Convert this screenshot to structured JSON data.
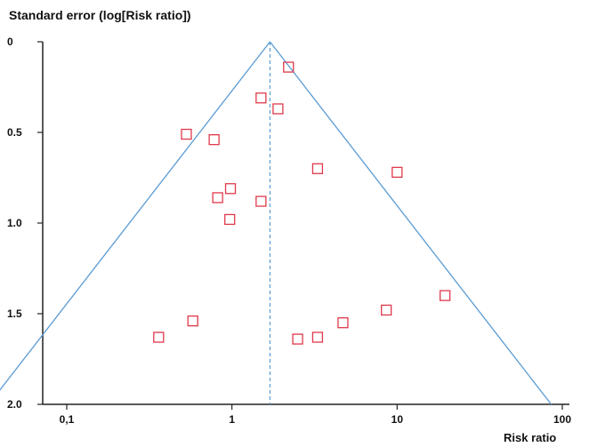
{
  "chart_data": {
    "type": "scatter",
    "title": "Standard error (log[Risk ratio])",
    "xlabel": "Risk ratio",
    "ylabel": "",
    "x_scale": "log",
    "xlim": [
      0.1,
      100
    ],
    "ylim": [
      0,
      2.0
    ],
    "y_inverted": true,
    "x_ticks": [
      0.1,
      1,
      10,
      100
    ],
    "x_tick_labels": [
      "0,1",
      "1",
      "10",
      "100"
    ],
    "y_ticks": [
      0,
      0.5,
      1.0,
      1.5,
      2.0
    ],
    "y_tick_labels": [
      "0",
      "0.5",
      "1.0",
      "1.5",
      "2.0"
    ],
    "grid": false,
    "pooled_estimate": 1.7,
    "funnel_z": 1.96,
    "colors": {
      "points": "#e0394b",
      "funnel": "#5a9bd4",
      "axis": "#222222"
    },
    "points": [
      {
        "x": 2.2,
        "y": 0.14
      },
      {
        "x": 1.5,
        "y": 0.31
      },
      {
        "x": 1.9,
        "y": 0.37
      },
      {
        "x": 0.53,
        "y": 0.51
      },
      {
        "x": 0.78,
        "y": 0.54
      },
      {
        "x": 3.3,
        "y": 0.7
      },
      {
        "x": 10.0,
        "y": 0.72
      },
      {
        "x": 0.98,
        "y": 0.81
      },
      {
        "x": 0.82,
        "y": 0.86
      },
      {
        "x": 1.5,
        "y": 0.88
      },
      {
        "x": 0.97,
        "y": 0.98
      },
      {
        "x": 19.5,
        "y": 1.4
      },
      {
        "x": 8.6,
        "y": 1.48
      },
      {
        "x": 4.7,
        "y": 1.55
      },
      {
        "x": 0.58,
        "y": 1.54
      },
      {
        "x": 0.36,
        "y": 1.63
      },
      {
        "x": 2.5,
        "y": 1.64
      },
      {
        "x": 3.3,
        "y": 1.63
      }
    ]
  }
}
